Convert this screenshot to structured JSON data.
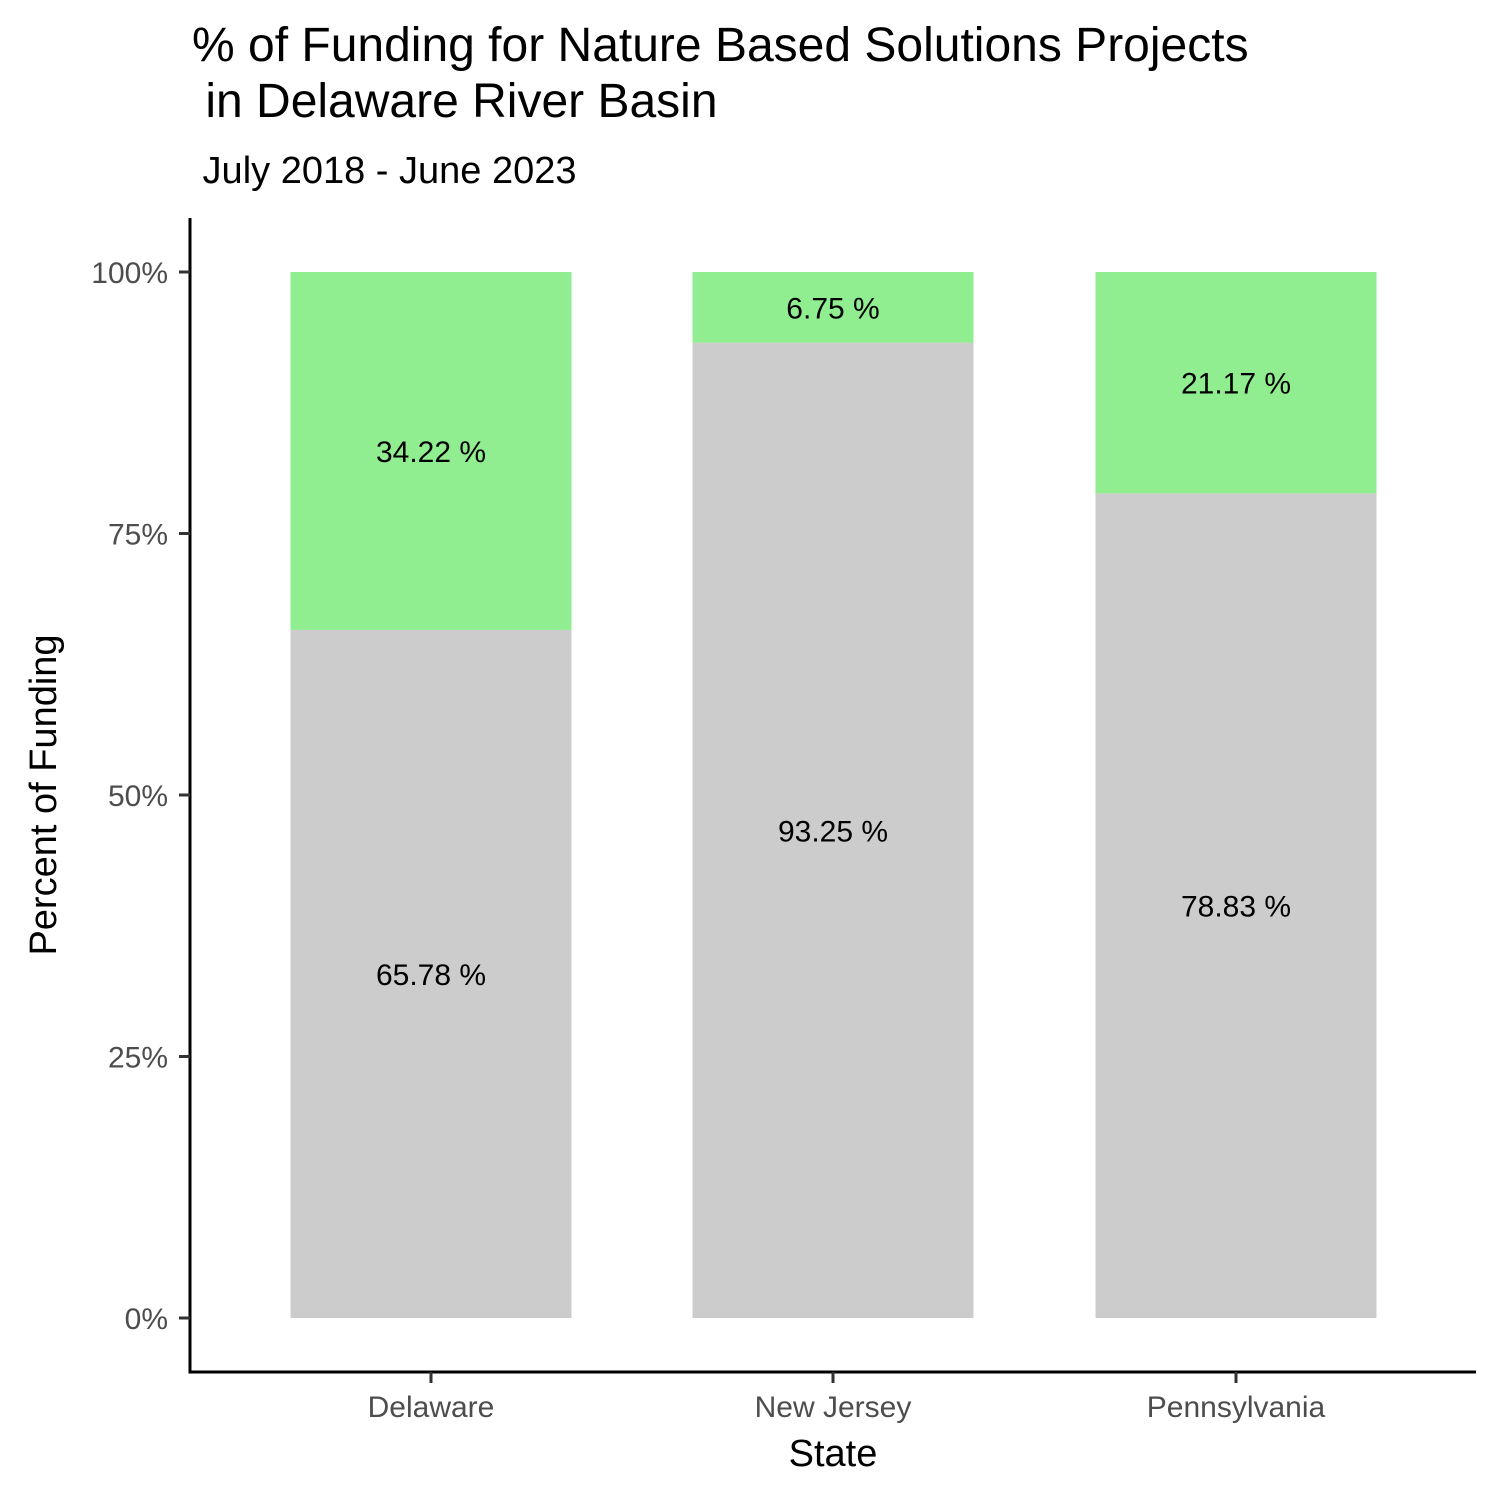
{
  "chart_data": {
    "type": "bar",
    "stacked": true,
    "title_line1": "% of Funding for Nature Based Solutions Projects",
    "title_line2": " in Delaware River Basin",
    "subtitle": " July 2018 - June 2023",
    "xlabel": "State",
    "ylabel": "Percent of Funding",
    "categories": [
      "Delaware",
      "New Jersey",
      "Pennsylvania"
    ],
    "ylim": [
      0,
      100
    ],
    "yticks": [
      0,
      25,
      50,
      75,
      100
    ],
    "ytick_labels": [
      "0%",
      "25%",
      "50%",
      "75%",
      "100%"
    ],
    "grid": false,
    "legend": "none",
    "series": [
      {
        "values": [
          65.78,
          93.25,
          78.83
        ],
        "labels": [
          "65.78 %",
          "93.25 %",
          "78.83 %"
        ],
        "color": "#cccccc"
      },
      {
        "values": [
          34.22,
          6.75,
          21.17
        ],
        "labels": [
          "34.22 %",
          "6.75 %",
          "21.17 %"
        ],
        "color": "#90ee90"
      }
    ]
  }
}
